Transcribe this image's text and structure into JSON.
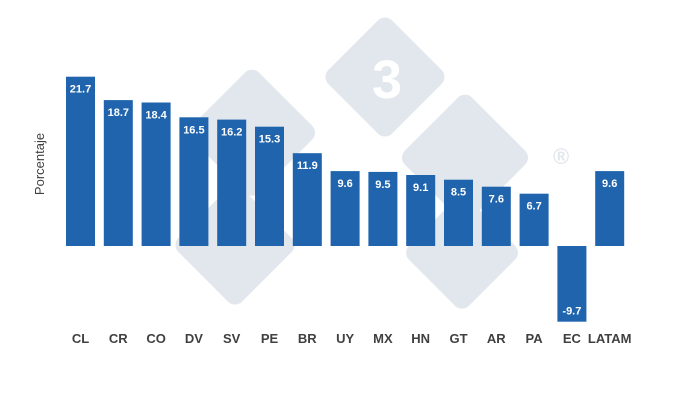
{
  "chart_data": {
    "type": "bar",
    "categories": [
      "CL",
      "CR",
      "CO",
      "DV",
      "SV",
      "PE",
      "BR",
      "UY",
      "MX",
      "HN",
      "GT",
      "AR",
      "PA",
      "EC",
      "LATAM"
    ],
    "values": [
      21.7,
      18.7,
      18.4,
      16.5,
      16.2,
      15.3,
      11.9,
      9.6,
      9.5,
      9.1,
      8.5,
      7.6,
      6.7,
      -9.7,
      9.6
    ],
    "data_labels": [
      "21.7",
      "18.7",
      "18.4",
      "16.5",
      "16.2",
      "15.3",
      "11.9",
      "9.6",
      "9.5",
      "9.1",
      "8.5",
      "7.6",
      "6.7",
      "-9.7",
      "9.6"
    ],
    "title": "",
    "xlabel": "",
    "ylabel": "Porcentaje",
    "ylim": [
      -10,
      22
    ],
    "grid": false,
    "legend": "none",
    "bar_color": "#1f64ad",
    "label_color": "#ffffff",
    "tick_color": "#404040"
  },
  "watermark": {
    "text": "3",
    "trademark": "®",
    "color": "#dfe5ec"
  }
}
